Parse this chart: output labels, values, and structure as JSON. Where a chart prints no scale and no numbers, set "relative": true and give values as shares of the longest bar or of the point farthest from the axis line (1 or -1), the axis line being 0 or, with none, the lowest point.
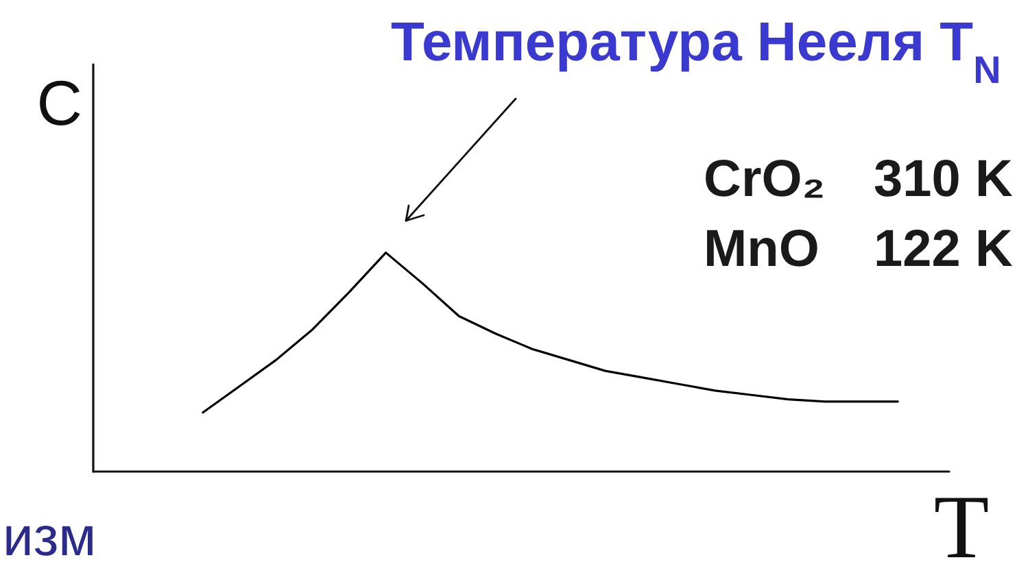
{
  "chart_data": {
    "type": "line",
    "xlabel": "T",
    "ylabel": "C",
    "relative": true,
    "annotations": [
      "Температура Нееля T$_{N}$",
      "CrO₂ 310 K",
      "MnO 122 K",
      "изм"
    ],
    "categories": [
      null,
      null,
      null,
      null,
      null,
      null,
      null,
      null,
      null,
      null,
      null,
      null,
      null,
      null,
      null,
      null,
      null,
      null,
      null,
      null
    ],
    "series": [
      {
        "color": "#000000",
        "values": [
          0.27,
          0.39,
          0.51,
          0.65,
          0.82,
          1,
          0.86,
          0.71,
          0.63,
          0.56,
          0.51,
          0.46,
          0.43,
          0.4,
          0.37,
          0.35,
          0.33,
          0.32,
          0.32,
          0.32
        ]
      }
    ]
  }
}
